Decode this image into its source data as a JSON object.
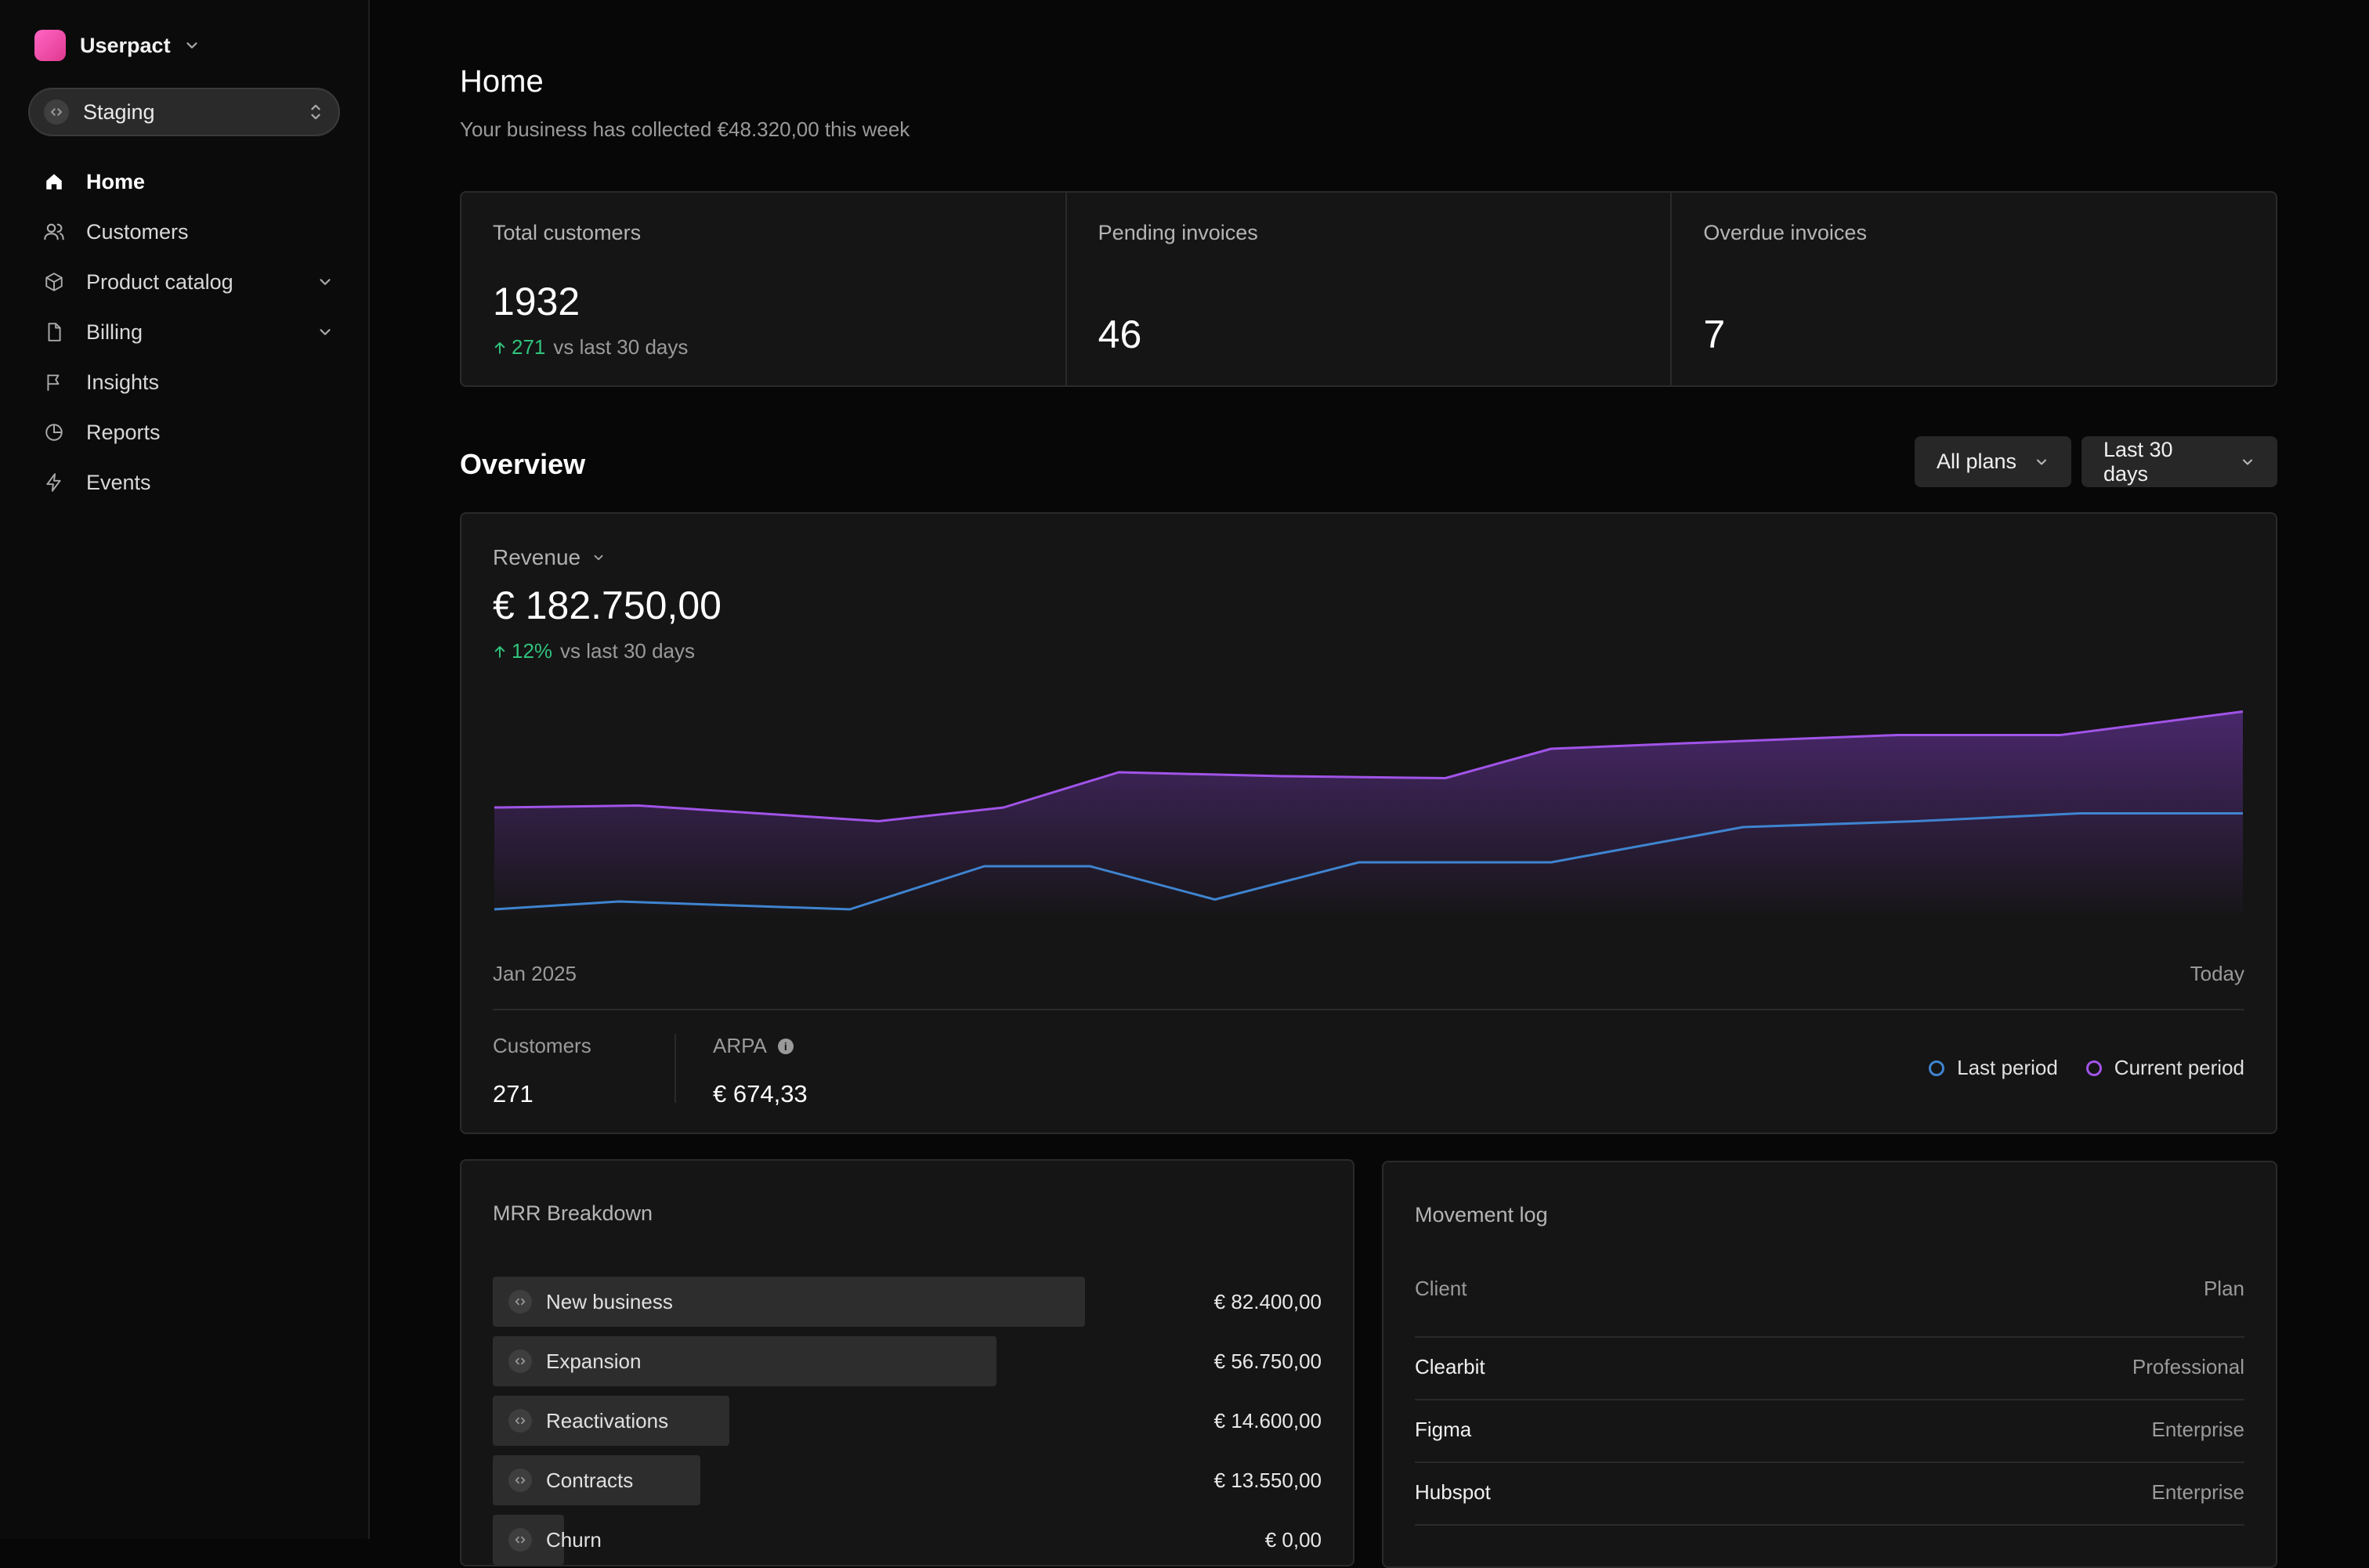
{
  "workspace": {
    "name": "Userpact"
  },
  "environment": {
    "label": "Staging"
  },
  "nav": [
    {
      "label": "Home",
      "icon": "home-icon",
      "active": true,
      "expandable": false
    },
    {
      "label": "Customers",
      "icon": "users-icon",
      "active": false,
      "expandable": false
    },
    {
      "label": "Product catalog",
      "icon": "box-icon",
      "active": false,
      "expandable": true
    },
    {
      "label": "Billing",
      "icon": "file-icon",
      "active": false,
      "expandable": true
    },
    {
      "label": "Insights",
      "icon": "flag-icon",
      "active": false,
      "expandable": false
    },
    {
      "label": "Reports",
      "icon": "pie-chart-icon",
      "active": false,
      "expandable": false
    },
    {
      "label": "Events",
      "icon": "bolt-icon",
      "active": false,
      "expandable": false
    }
  ],
  "page": {
    "title": "Home",
    "subtitle": "Your business has collected €48.320,00 this week"
  },
  "stats": [
    {
      "label": "Total customers",
      "value": "1932",
      "delta": "271",
      "delta_text": "vs last 30 days"
    },
    {
      "label": "Pending invoices",
      "value": "46"
    },
    {
      "label": "Overdue invoices",
      "value": "7"
    }
  ],
  "overview": {
    "title": "Overview",
    "filter_plans": "All plans",
    "filter_period": "Last 30 days"
  },
  "revenue": {
    "label": "Revenue",
    "value": "€ 182.750,00",
    "delta": "12%",
    "delta_text": "vs last 30 days",
    "axis_start": "Jan 2025",
    "axis_end": "Today",
    "customers_label": "Customers",
    "customers_value": "271",
    "arpa_label": "ARPA",
    "arpa_value": "€ 674,33",
    "legend_last": "Last period",
    "legend_current": "Current period"
  },
  "chart_data": {
    "type": "line",
    "x": [
      0,
      1,
      2,
      3,
      4,
      5,
      6,
      7,
      8,
      9,
      10,
      11,
      12,
      13,
      14,
      15,
      16
    ],
    "series": [
      {
        "name": "Current period",
        "color": "#a154e8",
        "values": [
          52,
          53,
          45,
          52,
          70,
          68,
          67,
          82,
          86,
          89,
          89,
          101
        ],
        "x": [
          0,
          1.5,
          4,
          5.3,
          6.5,
          8.2,
          9.9,
          11,
          13,
          14.6,
          16.3,
          18.2
        ]
      },
      {
        "name": "Last period",
        "color": "#3f84d0",
        "values": [
          0,
          4,
          0,
          22,
          22,
          5,
          24,
          24,
          42,
          45,
          49,
          49
        ],
        "x": [
          0,
          1.3,
          3.7,
          5.1,
          6.2,
          7.5,
          9,
          11,
          13,
          14.8,
          16.5,
          18.2
        ]
      }
    ],
    "ylim": [
      -10,
      110
    ],
    "xlabel": "",
    "ylabel": ""
  },
  "mrr": {
    "title": "MRR Breakdown",
    "rows": [
      {
        "label": "New business",
        "value": "€ 82.400,00",
        "share": 1.0
      },
      {
        "label": "Expansion",
        "value": "€ 56.750,00",
        "share": 0.85
      },
      {
        "label": "Reactivations",
        "value": "€ 14.600,00",
        "share": 0.4
      },
      {
        "label": "Contracts",
        "value": "€ 13.550,00",
        "share": 0.35
      },
      {
        "label": "Churn",
        "value": "€ 0,00",
        "share": 0.12
      }
    ]
  },
  "movement": {
    "title": "Movement log",
    "col_client": "Client",
    "col_plan": "Plan",
    "rows": [
      {
        "client": "Clearbit",
        "plan": "Professional"
      },
      {
        "client": "Figma",
        "plan": "Enterprise"
      },
      {
        "client": "Hubspot",
        "plan": "Enterprise"
      }
    ]
  }
}
